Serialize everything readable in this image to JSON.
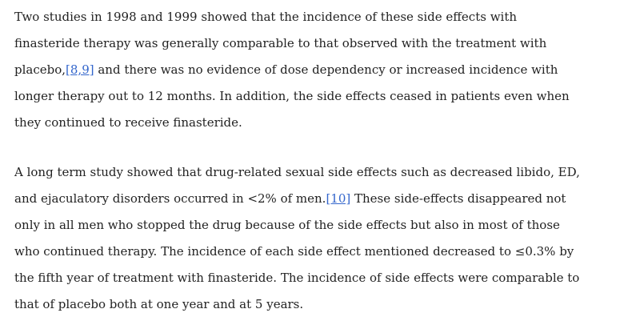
{
  "paragraphs": [
    {
      "lines": [
        [
          "Two studies in 1998 and 1999 showed that the incidence of these side effects with"
        ],
        [
          "finasteride therapy was generally comparable to that observed with the treatment with"
        ],
        [
          "placebo,",
          {
            "link": "[8,9]"
          },
          " and there was no evidence of dose dependency or increased incidence with"
        ],
        [
          "longer therapy out to 12 months. In addition, the side effects ceased in patients even when"
        ],
        [
          "they continued to receive finasteride."
        ]
      ]
    },
    {
      "lines": [
        [
          "A long term study showed that drug-related sexual side effects such as decreased libido, ED,"
        ],
        [
          "and ejaculatory disorders occurred in <2% of men.",
          {
            "link": "[10]"
          },
          " These side-effects disappeared not"
        ],
        [
          "only in all men who stopped the drug because of the side effects but also in most of those"
        ],
        [
          "who continued therapy. The incidence of each side effect mentioned decreased to ≤0.3% by"
        ],
        [
          "the fifth year of treatment with finasteride. The incidence of side effects were comparable to"
        ],
        [
          "that of placebo both at one year and at 5 years."
        ]
      ]
    }
  ]
}
